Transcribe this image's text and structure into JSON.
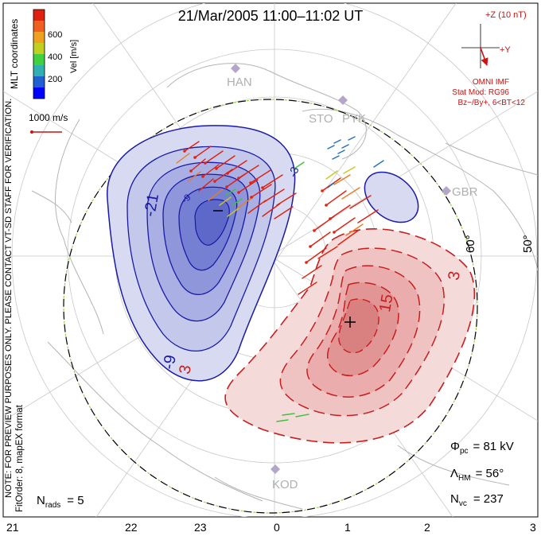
{
  "title": "21/Mar/2005 11:00–11:02 UT",
  "colorbar": {
    "label": "Vel [m/s]",
    "ticks": [
      "600",
      "400",
      "200"
    ],
    "colors": [
      "#0000ff",
      "#2060d0",
      "#30b0b0",
      "#40d040",
      "#c0d020",
      "#f0a020",
      "#f06020",
      "#e02010"
    ]
  },
  "coord_label": "MLT coordinates",
  "vector_scale": "1000 m/s",
  "imf": {
    "z_label": "+Z (10 nT)",
    "y_label": "+Y",
    "source": "OMNI IMF",
    "model": "Stat Mod: RG96",
    "model_params": "Bz−/By+, 6<BT<12"
  },
  "stations": [
    "HAN",
    "STO",
    "PYK",
    "GBR",
    "KOD"
  ],
  "latitude_labels": [
    "60°",
    "50°"
  ],
  "contours": {
    "negative_labels": [
      "-21",
      "-9",
      "-9",
      "-3"
    ],
    "positive_labels": [
      "3",
      "15",
      "3"
    ]
  },
  "stats": {
    "pcp_label": "Φpc",
    "pcp_value": "= 81 kV",
    "lambda_label": "ΛHM",
    "lambda_value": "= 56°",
    "nvc_label": "Nvc",
    "nvc_value": "= 237",
    "nrads_label": "Nrads",
    "nrads_value": "= 5"
  },
  "side_note_1": "NOTE: FOR PREVIEW PURPOSES ONLY. PLEASE CONTACT VT-SD STAFF FOR VERIFICATION.",
  "side_note_2": "FitOrder: 8, mapEX format",
  "mlt_ticks": [
    "21",
    "22",
    "23",
    "0",
    "1",
    "2",
    "3"
  ]
}
